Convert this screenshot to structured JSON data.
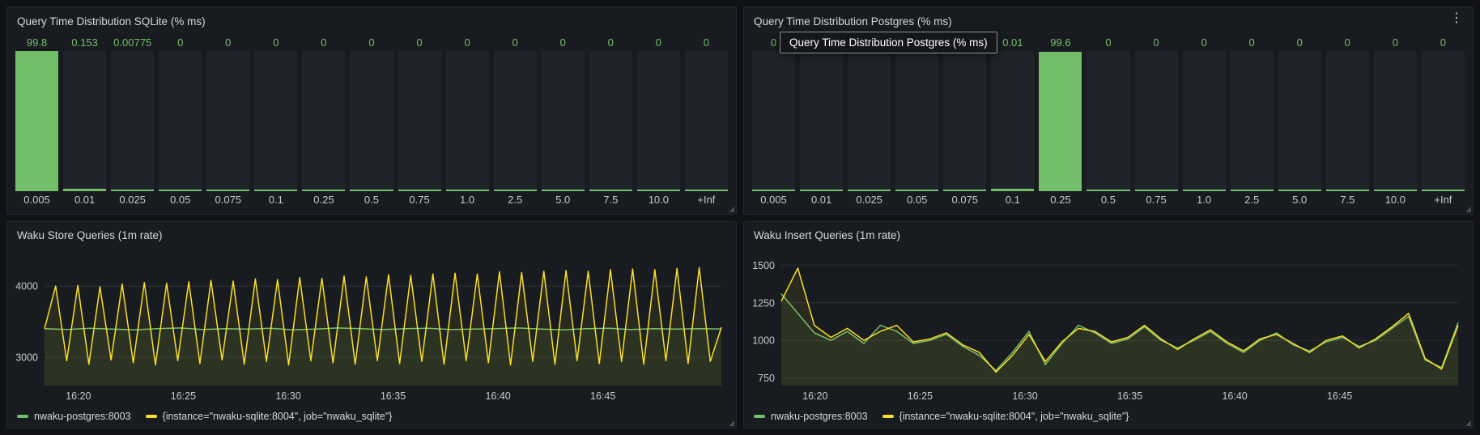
{
  "theme": {
    "bg": "#111217",
    "panel_bg": "#181b1f",
    "green": "#73bf69",
    "yellow": "#fade2a",
    "title_color": "#d8d9da",
    "tick_color": "#c8c9cd"
  },
  "panels": {
    "sqlite_hist": {
      "title": "Query Time Distribution SQLite (% ms)",
      "chart_data": {
        "type": "bar",
        "categories": [
          "0.005",
          "0.01",
          "0.025",
          "0.05",
          "0.075",
          "0.1",
          "0.25",
          "0.5",
          "0.75",
          "1.0",
          "2.5",
          "5.0",
          "7.5",
          "10.0",
          "+Inf"
        ],
        "values": [
          99.8,
          0.153,
          0.00775,
          0,
          0,
          0,
          0,
          0,
          0,
          0,
          0,
          0,
          0,
          0,
          0
        ],
        "value_labels": [
          "99.8",
          "0.153",
          "0.00775",
          "0",
          "0",
          "0",
          "0",
          "0",
          "0",
          "0",
          "0",
          "0",
          "0",
          "0",
          "0"
        ],
        "ymax": 100
      }
    },
    "postgres_hist": {
      "title": "Query Time Distribution Postgres (% ms)",
      "menu_icon": "⋮",
      "tooltip": "Query Time Distribution Postgres (% ms)",
      "chart_data": {
        "type": "bar",
        "categories": [
          "0.005",
          "0.01",
          "0.025",
          "0.05",
          "0.075",
          "0.1",
          "0.25",
          "0.5",
          "0.75",
          "1.0",
          "2.5",
          "5.0",
          "7.5",
          "10.0",
          "+Inf"
        ],
        "values": [
          0,
          0,
          0,
          0,
          0,
          0.01,
          99.6,
          0,
          0,
          0,
          0,
          0,
          0,
          0,
          0
        ],
        "value_labels": [
          "0",
          "0",
          "0",
          "0",
          "0",
          "0.01",
          "99.6",
          "0",
          "0",
          "0",
          "0",
          "0",
          "0",
          "0",
          "0"
        ],
        "ymax": 100
      }
    },
    "store": {
      "title": "Waku Store Queries (1m rate)",
      "chart_data": {
        "type": "line",
        "ylim": [
          2600,
          4400
        ],
        "yticks": [
          3000,
          4000
        ],
        "xticks": [
          {
            "label": "16:20",
            "f": 0.05
          },
          {
            "label": "16:25",
            "f": 0.205
          },
          {
            "label": "16:30",
            "f": 0.36
          },
          {
            "label": "16:35",
            "f": 0.515
          },
          {
            "label": "16:40",
            "f": 0.67
          },
          {
            "label": "16:45",
            "f": 0.825
          }
        ],
        "series": [
          {
            "name": "nwaku-postgres:8003",
            "color": "#73bf69",
            "values": [
              3400,
              3390,
              3405,
              3395,
              3385,
              3400,
              3410,
              3390,
              3400,
              3395,
              3405,
              3385,
              3395,
              3410,
              3400,
              3390,
              3400,
              3405,
              3390,
              3395,
              3400,
              3410,
              3395,
              3385,
              3400,
              3405,
              3390,
              3400,
              3395,
              3400,
              3395
            ]
          },
          {
            "name": "{instance=\"nwaku-sqlite:8004\", job=\"nwaku_sqlite\"}",
            "color": "#fade2a",
            "values": [
              3400,
              4000,
              2950,
              4010,
              2900,
              3990,
              2960,
              4030,
              2920,
              4050,
              2890,
              4040,
              2950,
              4060,
              2910,
              4080,
              2960,
              4070,
              2900,
              4100,
              2940,
              4090,
              2890,
              4120,
              2950,
              4110,
              2920,
              4140,
              2900,
              4130,
              2950,
              4160,
              2910,
              4150,
              2940,
              4170,
              2900,
              4180,
              2950,
              4170,
              2920,
              4200,
              2890,
              4190,
              2940,
              4210,
              2900,
              4220,
              2950,
              4210,
              2910,
              4230,
              2940,
              4240,
              2900,
              4230,
              2950,
              4250,
              2910,
              4260,
              2940,
              3420
            ]
          }
        ]
      }
    },
    "insert": {
      "title": "Waku Insert Queries (1m rate)",
      "chart_data": {
        "type": "line",
        "ylim": [
          700,
          1550
        ],
        "yticks": [
          750,
          1000,
          1250,
          1500
        ],
        "xticks": [
          {
            "label": "16:20",
            "f": 0.05
          },
          {
            "label": "16:25",
            "f": 0.205
          },
          {
            "label": "16:30",
            "f": 0.36
          },
          {
            "label": "16:35",
            "f": 0.515
          },
          {
            "label": "16:40",
            "f": 0.67
          },
          {
            "label": "16:45",
            "f": 0.825
          }
        ],
        "series": [
          {
            "name": "nwaku-postgres:8003",
            "color": "#73bf69",
            "values": [
              1310,
              1180,
              1050,
              1000,
              1060,
              980,
              1100,
              1060,
              980,
              1000,
              1040,
              960,
              900,
              800,
              920,
              1060,
              840,
              980,
              1100,
              1050,
              980,
              1010,
              1090,
              1000,
              950,
              1000,
              1060,
              980,
              920,
              1000,
              1050,
              970,
              930,
              990,
              1020,
              960,
              1000,
              1080,
              1160,
              870,
              820,
              1120
            ]
          },
          {
            "name": "{instance=\"nwaku-sqlite:8004\", job=\"nwaku_sqlite\"}",
            "color": "#fade2a",
            "values": [
              1260,
              1480,
              1100,
              1020,
              1080,
              1000,
              1060,
              1100,
              990,
              1010,
              1050,
              970,
              920,
              790,
              900,
              1040,
              860,
              990,
              1080,
              1060,
              990,
              1020,
              1100,
              1010,
              940,
              1010,
              1070,
              990,
              930,
              1010,
              1040,
              980,
              920,
              1000,
              1030,
              950,
              1010,
              1090,
              1180,
              880,
              810,
              1100
            ]
          }
        ]
      }
    }
  }
}
